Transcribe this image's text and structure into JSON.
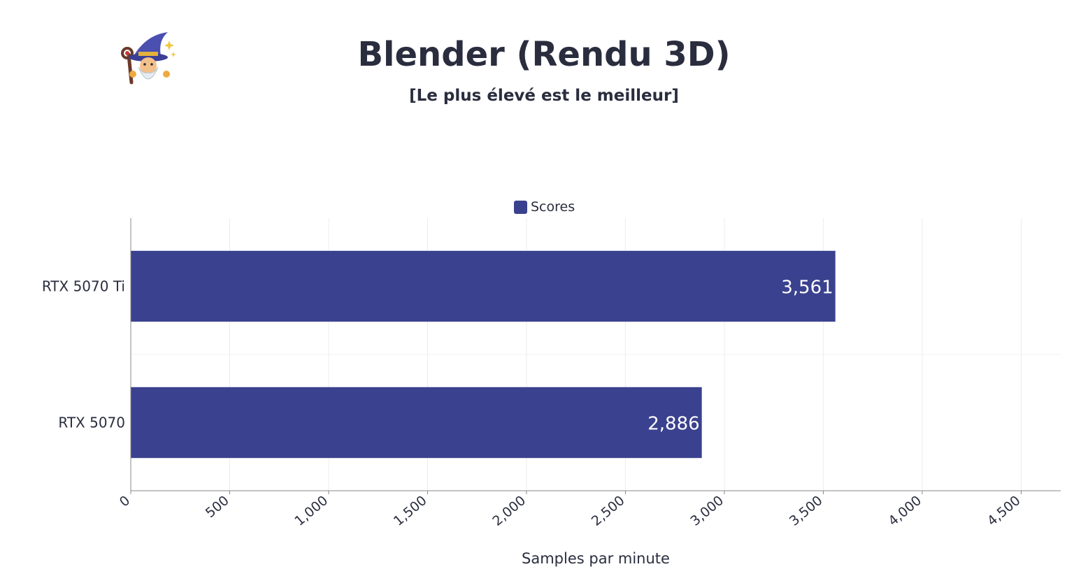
{
  "header": {
    "title": "Blender (Rendu 3D)",
    "subtitle": "[Le plus élevé est le meilleur]",
    "logo_icon": "wizard-icon"
  },
  "chart_data": {
    "type": "bar",
    "orientation": "horizontal",
    "categories": [
      "RTX 5070 Ti",
      "RTX 5070"
    ],
    "series": [
      {
        "name": "Scores",
        "values": [
          3561,
          2886
        ],
        "color": "#3a418e"
      }
    ],
    "data_labels": [
      "3,561",
      "2,886"
    ],
    "xlabel": "Samples par minute",
    "ylabel": "",
    "xlim": [
      0,
      4700
    ],
    "xticks": [
      0,
      500,
      1000,
      1500,
      2000,
      2500,
      3000,
      3500,
      4000,
      4500
    ],
    "xtick_labels": [
      "0",
      "500",
      "1,000",
      "1,500",
      "2,000",
      "2,500",
      "3,000",
      "3,500",
      "4,000",
      "4,500"
    ],
    "grid": true,
    "legend_position": "top-center"
  },
  "legend": {
    "label": "Scores"
  }
}
